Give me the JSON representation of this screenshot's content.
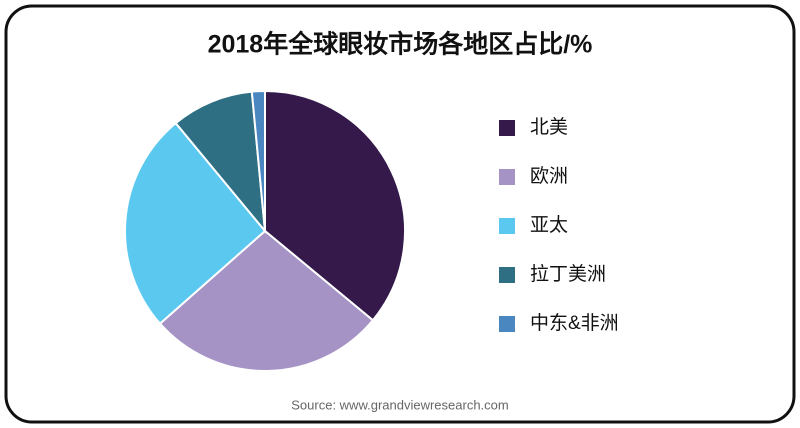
{
  "chart_data": {
    "type": "pie",
    "title": "2018年全球眼妆市场各地区占比/%",
    "categories": [
      "北美",
      "欧洲",
      "亚太",
      "拉丁美洲",
      "中东&非洲"
    ],
    "values": [
      36,
      27.5,
      25.5,
      9.5,
      1.5
    ],
    "colors": [
      "#34194a",
      "#a593c6",
      "#5bc8f0",
      "#2e6f84",
      "#4a86c0"
    ],
    "source": "Source: www.grandviewresearch.com"
  }
}
